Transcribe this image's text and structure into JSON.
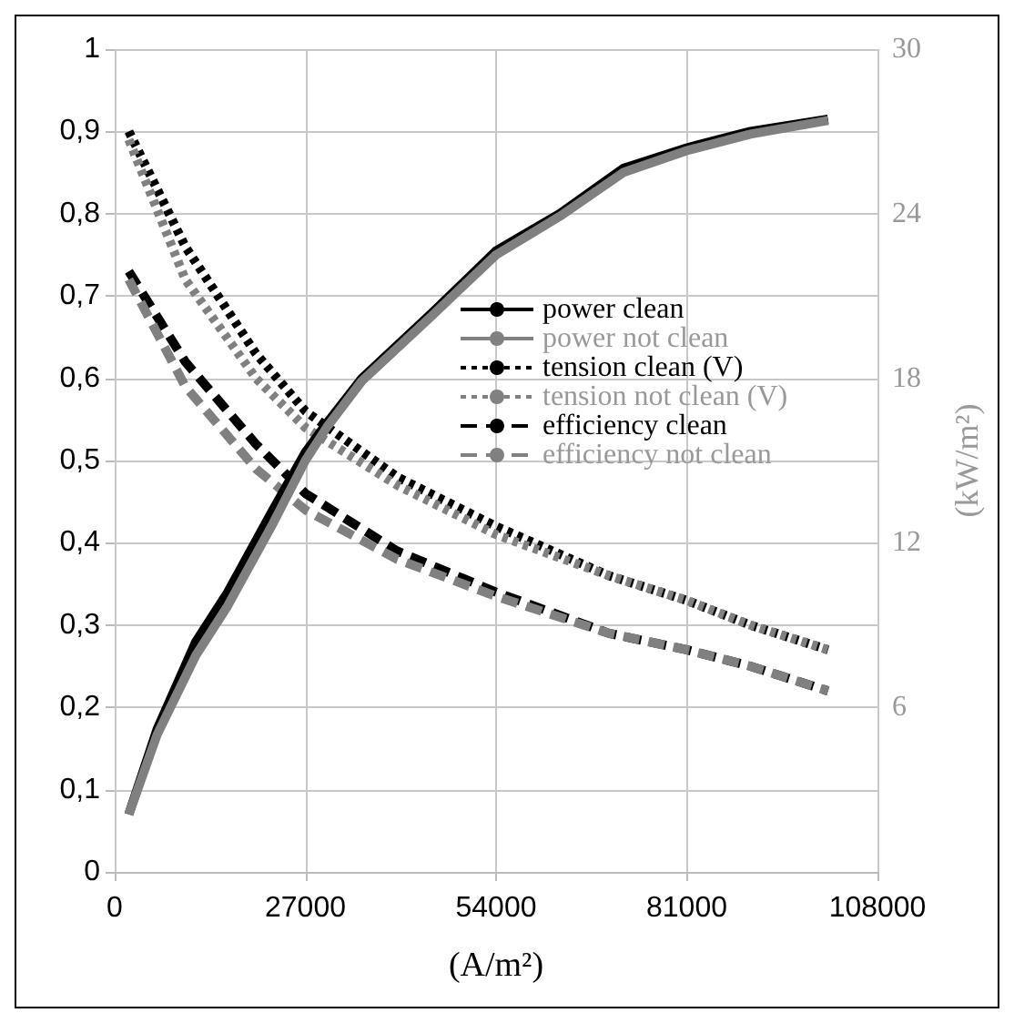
{
  "chart_data": {
    "type": "line",
    "xlabel": "(A/m²)",
    "y2label": "(kW/m²)",
    "xlim": [
      0,
      108000
    ],
    "xticks": [
      0,
      27000,
      54000,
      81000,
      108000
    ],
    "ylim": [
      0,
      1
    ],
    "yticks": [
      0,
      {
        "value": 0.1,
        "label": "0,1"
      },
      {
        "value": 0.2,
        "label": "0,2"
      },
      {
        "value": 0.3,
        "label": "0,3"
      },
      {
        "value": 0.4,
        "label": "0,4"
      },
      {
        "value": 0.5,
        "label": "0,5"
      },
      {
        "value": 0.6,
        "label": "0,6"
      },
      {
        "value": 0.7,
        "label": "0,7"
      },
      {
        "value": 0.8,
        "label": "0,8"
      },
      {
        "value": 0.9,
        "label": "0,9"
      },
      1
    ],
    "y2lim": [
      0,
      30
    ],
    "y2ticks": [
      6,
      12,
      18,
      24,
      30
    ],
    "grid": true,
    "legend": "right",
    "marker": "none",
    "series": [
      {
        "name": "power clean",
        "color": "#000000",
        "axis": "y2",
        "line_style": "solid",
        "x": [
          2000,
          6000,
          11500,
          16000,
          22400,
          27000,
          30000,
          35000,
          45000,
          54000,
          63000,
          72000,
          81000,
          90000,
          101000
        ],
        "values": [
          2.1,
          5.2,
          8.4,
          10.2,
          13.2,
          15.3,
          16.35,
          18,
          20.4,
          22.65,
          24,
          25.65,
          26.4,
          27,
          27.45
        ]
      },
      {
        "name": "power not clean",
        "color": "#808080",
        "axis": "y2",
        "line_style": "solid",
        "x": [
          2000,
          6000,
          11500,
          16000,
          22400,
          27000,
          30000,
          35000,
          45000,
          54000,
          63000,
          72000,
          81000,
          90000,
          101000
        ],
        "values": [
          2.1,
          5,
          7.9,
          9.7,
          12.7,
          15,
          16.2,
          17.9,
          20.3,
          22.5,
          23.9,
          25.5,
          26.3,
          26.9,
          27.4
        ]
      },
      {
        "name": "tension clean (V)",
        "color": "#000000",
        "axis": "y",
        "line_style": "dotted",
        "x": [
          2000,
          10000,
          20000,
          27000,
          40000,
          54000,
          70000,
          81000,
          90000,
          101000
        ],
        "values": [
          0.9,
          0.76,
          0.63,
          0.56,
          0.48,
          0.42,
          0.36,
          0.33,
          0.3,
          0.27
        ]
      },
      {
        "name": "tension not clean (V)",
        "color": "#808080",
        "axis": "y",
        "line_style": "dotted",
        "x": [
          2000,
          10000,
          20000,
          27000,
          40000,
          54000,
          70000,
          81000,
          90000,
          101000
        ],
        "values": [
          0.89,
          0.72,
          0.6,
          0.54,
          0.47,
          0.41,
          0.36,
          0.33,
          0.3,
          0.27
        ]
      },
      {
        "name": "efficiency clean",
        "color": "#000000",
        "axis": "y",
        "line_style": "dashed",
        "x": [
          2000,
          10000,
          20000,
          27000,
          40000,
          54000,
          70000,
          81000,
          90000,
          101000
        ],
        "values": [
          0.73,
          0.62,
          0.52,
          0.46,
          0.39,
          0.34,
          0.29,
          0.27,
          0.25,
          0.22
        ]
      },
      {
        "name": "efficiency not clean",
        "color": "#808080",
        "axis": "y",
        "line_style": "dashed",
        "x": [
          2000,
          10000,
          20000,
          27000,
          40000,
          54000,
          70000,
          81000,
          90000,
          101000
        ],
        "values": [
          0.72,
          0.59,
          0.49,
          0.44,
          0.38,
          0.335,
          0.29,
          0.27,
          0.25,
          0.22
        ]
      }
    ]
  }
}
